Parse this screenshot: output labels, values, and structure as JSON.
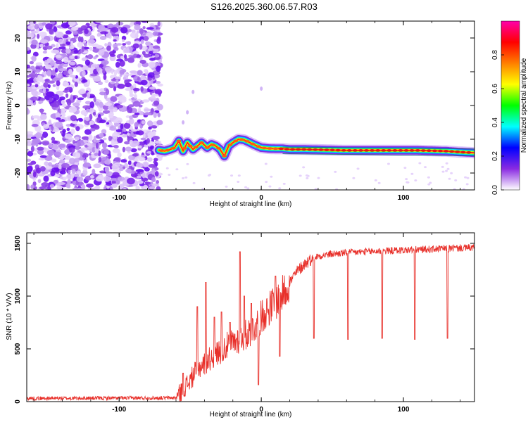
{
  "title": "S126.2025.360.06.57.R03",
  "chart_data": [
    {
      "type": "heatmap",
      "name": "spectrogram",
      "xlabel": "Height of straight line (km)",
      "ylabel": "Frequency (Hz)",
      "xlim": [
        -165,
        150
      ],
      "ylim": [
        -25,
        25
      ],
      "xticks": [
        -100,
        0,
        100
      ],
      "xtick_labels": [
        "-100",
        "0",
        "100"
      ],
      "yticks": [
        -20,
        -10,
        0,
        10,
        20
      ],
      "ytick_labels": [
        "-20",
        "-10",
        "0",
        "10",
        "20"
      ],
      "colorbar": {
        "label": "Normalized spectral amplitude",
        "range": [
          0,
          1
        ],
        "ticks": [
          0.0,
          0.2,
          0.4,
          0.6,
          0.8
        ],
        "tick_labels": [
          "0.0",
          "0.2",
          "0.4",
          "0.6",
          "0.8"
        ],
        "colors": [
          "#ffffff",
          "#8a2be2",
          "#0000ff",
          "#00ffff",
          "#00ff00",
          "#ffff00",
          "#ff7f00",
          "#ff0000",
          "#ff00aa"
        ]
      },
      "noise_region_x": [
        -165,
        -72
      ],
      "ridge": {
        "x": [
          -72,
          -68,
          -64,
          -61,
          -58,
          -55,
          -52,
          -48,
          -45,
          -42,
          -38,
          -35,
          -32,
          -29,
          -26,
          -23,
          -20,
          -16,
          -12,
          -8,
          -4,
          0,
          5,
          10,
          15,
          20,
          30,
          40,
          50,
          60,
          70,
          80,
          90,
          100,
          110,
          120,
          130,
          140,
          150
        ],
        "y": [
          -13.2,
          -13.5,
          -13.0,
          -12.5,
          -10.5,
          -13.5,
          -11.0,
          -13.0,
          -12.0,
          -11.0,
          -12.5,
          -11.5,
          -12.0,
          -13.0,
          -15.0,
          -12.0,
          -11.0,
          -10.0,
          -10.2,
          -11.0,
          -11.8,
          -12.5,
          -12.7,
          -12.8,
          -12.8,
          -13.0,
          -13.0,
          -13.1,
          -13.2,
          -13.3,
          -13.3,
          -13.3,
          -13.3,
          -13.3,
          -13.3,
          -13.4,
          -13.5,
          -13.8,
          -14.0
        ]
      }
    },
    {
      "type": "line",
      "name": "snr",
      "xlabel": "Height of straight line (km)",
      "ylabel": "SNR (10 * V/V)",
      "xlim": [
        -165,
        150
      ],
      "ylim": [
        0,
        1600
      ],
      "xticks": [
        -100,
        0,
        100
      ],
      "xtick_labels": [
        "-100",
        "0",
        "100"
      ],
      "yticks": [
        0,
        500,
        1000,
        1500
      ],
      "ytick_labels": [
        "0",
        "500",
        "1000",
        "1500"
      ],
      "color": "#e8302a",
      "trend": {
        "x": [
          -165,
          -60,
          -55,
          -50,
          -45,
          -40,
          -35,
          -30,
          -25,
          -20,
          -15,
          -10,
          -5,
          0,
          5,
          10,
          15,
          20,
          25,
          30,
          35,
          40,
          50,
          60,
          80,
          100,
          120,
          150
        ],
        "y": [
          30,
          35,
          120,
          200,
          310,
          360,
          420,
          470,
          520,
          560,
          600,
          640,
          700,
          800,
          880,
          940,
          1020,
          1130,
          1230,
          1300,
          1350,
          1380,
          1400,
          1410,
          1425,
          1435,
          1445,
          1460
        ]
      },
      "spikes": [
        {
          "x": -55,
          "y": 270
        },
        {
          "x": -45,
          "y": 900
        },
        {
          "x": -39,
          "y": 1130
        },
        {
          "x": -33,
          "y": 800
        },
        {
          "x": -28,
          "y": 850
        },
        {
          "x": -22,
          "y": 750
        },
        {
          "x": -15,
          "y": 1420
        },
        {
          "x": -12,
          "y": 1000
        },
        {
          "x": -7,
          "y": 930
        },
        {
          "x": -2,
          "y": 160
        },
        {
          "x": 10,
          "y": 1190
        },
        {
          "x": 13,
          "y": 430
        }
      ],
      "dips": [
        {
          "x": 37,
          "y": 600
        },
        {
          "x": 61,
          "y": 590
        },
        {
          "x": 85,
          "y": 600
        },
        {
          "x": 108,
          "y": 590
        },
        {
          "x": 131,
          "y": 600
        }
      ]
    }
  ]
}
